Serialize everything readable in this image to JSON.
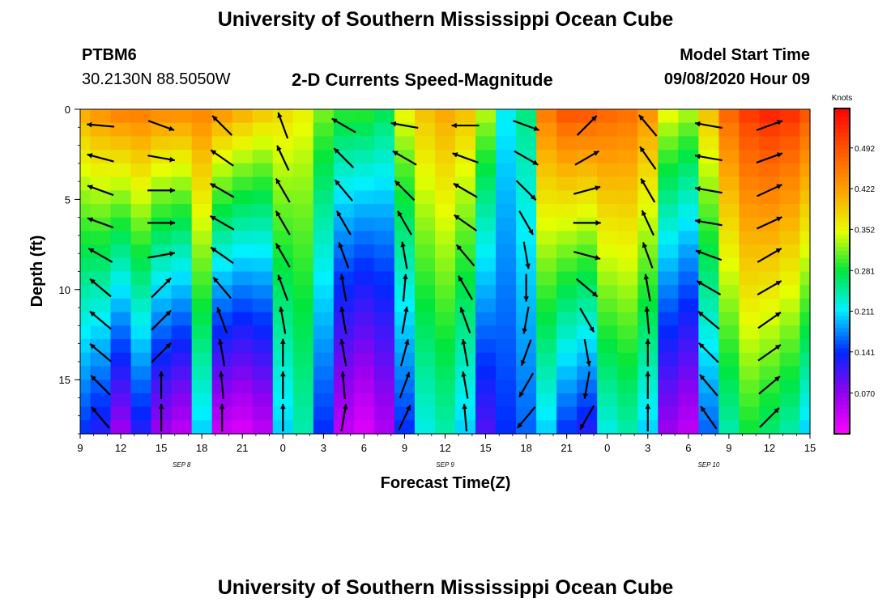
{
  "header": {
    "title": "University of Southern Mississippi Ocean Cube",
    "station": "PTBM6",
    "coords": "30.2130N 88.5050W",
    "plot_title": "2-D Currents Speed-Magnitude",
    "model_start_label": "Model Start Time",
    "model_start_value": "09/08/2020 Hour 09"
  },
  "footer": {
    "title": "University of Southern Mississippi Ocean Cube"
  },
  "chart_data": {
    "type": "heatmap",
    "title": "2-D Currents Speed-Magnitude",
    "xlabel": "Forecast Time(Z)",
    "ylabel": "Depth (ft)",
    "x_tick_labels": [
      "9",
      "12",
      "15",
      "18",
      "21",
      "0",
      "3",
      "6",
      "9",
      "12",
      "15",
      "18",
      "21",
      "0",
      "3",
      "6",
      "9",
      "12",
      "15"
    ],
    "x_range_hours": [
      0,
      54
    ],
    "date_labels": [
      {
        "text": "SEP 8",
        "hour": 7.5
      },
      {
        "text": "SEP 9",
        "hour": 27
      },
      {
        "text": "SEP 10",
        "hour": 46.5
      }
    ],
    "y_ticks": [
      0,
      5,
      10,
      15
    ],
    "ylim": [
      0,
      18
    ],
    "y_inverted": true,
    "colorbar": {
      "title": "Knots",
      "labels": [
        "0.492",
        "0.422",
        "0.352",
        "0.281",
        "0.211",
        "0.141",
        "0.070"
      ],
      "range": [
        0,
        0.56
      ]
    },
    "speed_profiles_note": "columns every ~1.5 h, surface speed and decay profile estimated from colors",
    "columns": [
      {
        "hour": 0,
        "surface": 0.42,
        "deep": 0.14
      },
      {
        "hour": 1.5,
        "surface": 0.44,
        "deep": 0.12
      },
      {
        "hour": 3,
        "surface": 0.46,
        "deep": 0.06
      },
      {
        "hour": 4.5,
        "surface": 0.46,
        "deep": 0.12
      },
      {
        "hour": 6,
        "surface": 0.45,
        "deep": 0.06
      },
      {
        "hour": 7.5,
        "surface": 0.45,
        "deep": 0.04
      },
      {
        "hour": 9,
        "surface": 0.45,
        "deep": 0.2
      },
      {
        "hour": 10.5,
        "surface": 0.44,
        "deep": 0.03
      },
      {
        "hour": 12,
        "surface": 0.42,
        "deep": 0.02
      },
      {
        "hour": 13.5,
        "surface": 0.4,
        "deep": 0.04
      },
      {
        "hour": 15,
        "surface": 0.38,
        "deep": 0.2
      },
      {
        "hour": 16.5,
        "surface": 0.36,
        "deep": 0.24
      },
      {
        "hour": 18,
        "surface": 0.32,
        "deep": 0.14
      },
      {
        "hour": 19.5,
        "surface": 0.3,
        "deep": 0.04
      },
      {
        "hour": 21,
        "surface": 0.3,
        "deep": 0.02
      },
      {
        "hour": 22.5,
        "surface": 0.28,
        "deep": 0.05
      },
      {
        "hour": 24,
        "surface": 0.36,
        "deep": 0.14
      },
      {
        "hour": 25.5,
        "surface": 0.4,
        "deep": 0.22
      },
      {
        "hour": 27,
        "surface": 0.42,
        "deep": 0.24
      },
      {
        "hour": 28.5,
        "surface": 0.4,
        "deep": 0.2
      },
      {
        "hour": 30,
        "surface": 0.34,
        "deep": 0.1
      },
      {
        "hour": 31.5,
        "surface": 0.22,
        "deep": 0.14
      },
      {
        "hour": 33,
        "surface": 0.26,
        "deep": 0.16
      },
      {
        "hour": 34.5,
        "surface": 0.46,
        "deep": 0.2
      },
      {
        "hour": 36,
        "surface": 0.5,
        "deep": 0.14
      },
      {
        "hour": 37.5,
        "surface": 0.5,
        "deep": 0.12
      },
      {
        "hour": 39,
        "surface": 0.48,
        "deep": 0.22
      },
      {
        "hour": 40.5,
        "surface": 0.47,
        "deep": 0.24
      },
      {
        "hour": 42,
        "surface": 0.44,
        "deep": 0.2
      },
      {
        "hour": 43.5,
        "surface": 0.36,
        "deep": 0.06
      },
      {
        "hour": 45,
        "surface": 0.34,
        "deep": 0.04
      },
      {
        "hour": 46.5,
        "surface": 0.4,
        "deep": 0.16
      },
      {
        "hour": 48,
        "surface": 0.48,
        "deep": 0.24
      },
      {
        "hour": 49.5,
        "surface": 0.52,
        "deep": 0.28
      },
      {
        "hour": 51,
        "surface": 0.54,
        "deep": 0.26
      },
      {
        "hour": 52.5,
        "surface": 0.53,
        "deep": 0.24
      },
      {
        "hour": 54,
        "surface": 0.5,
        "deep": 0.2
      }
    ],
    "vectors_note": "current direction arrows, angle in degrees (0 = pointing right, counter-clockwise positive)",
    "vector_columns": [
      {
        "hour": 1.5,
        "angles": [
          175,
          165,
          160,
          160,
          150,
          140,
          140,
          140,
          135,
          130
        ]
      },
      {
        "hour": 6,
        "angles": [
          -20,
          -10,
          0,
          0,
          10,
          45,
          45,
          45,
          90,
          90
        ]
      },
      {
        "hour": 10.5,
        "angles": [
          135,
          145,
          150,
          150,
          145,
          130,
          110,
          100,
          95,
          90
        ]
      },
      {
        "hour": 15,
        "angles": [
          110,
          115,
          120,
          120,
          120,
          110,
          100,
          90,
          90,
          90
        ]
      },
      {
        "hour": 19.5,
        "angles": [
          150,
          135,
          130,
          120,
          110,
          100,
          100,
          100,
          95,
          80
        ]
      },
      {
        "hour": 24,
        "angles": [
          170,
          150,
          135,
          120,
          100,
          85,
          80,
          75,
          70,
          65
        ]
      },
      {
        "hour": 28.5,
        "angles": [
          180,
          160,
          150,
          145,
          130,
          120,
          110,
          100,
          100,
          95
        ]
      },
      {
        "hour": 33,
        "angles": [
          -20,
          -30,
          -45,
          -60,
          -80,
          -90,
          -100,
          -110,
          -120,
          -130
        ]
      },
      {
        "hour": 37.5,
        "angles": [
          45,
          30,
          15,
          0,
          -15,
          -40,
          -60,
          -80,
          -100,
          -120
        ]
      },
      {
        "hour": 42,
        "angles": [
          130,
          125,
          120,
          115,
          110,
          100,
          95,
          90,
          90,
          90
        ]
      },
      {
        "hour": 46.5,
        "angles": [
          170,
          170,
          170,
          170,
          160,
          150,
          140,
          135,
          130,
          125
        ]
      },
      {
        "hour": 51,
        "angles": [
          20,
          20,
          25,
          25,
          30,
          30,
          35,
          35,
          40,
          45
        ]
      }
    ]
  }
}
